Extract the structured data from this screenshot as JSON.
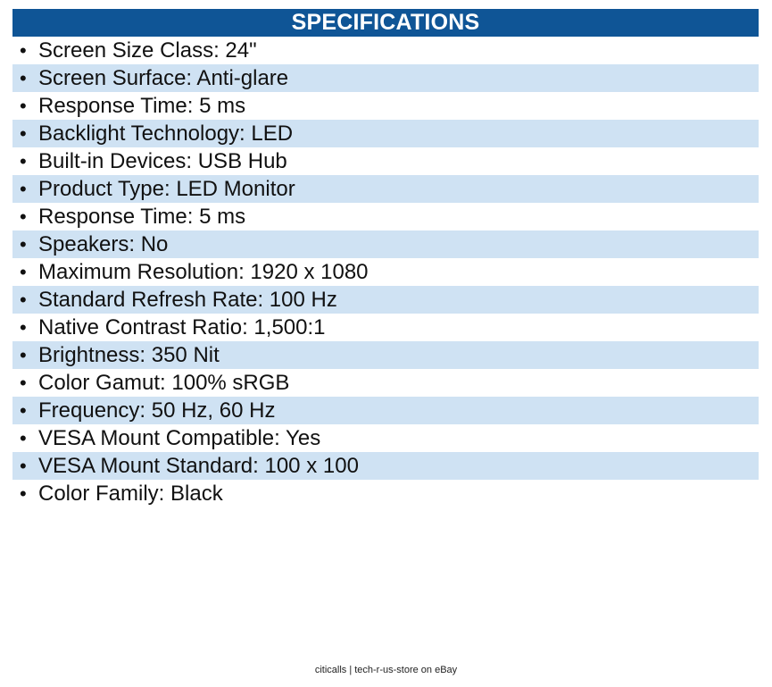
{
  "header": {
    "title": "SPECIFICATIONS"
  },
  "bullet_symbol": "•",
  "colors": {
    "header_background": "#0f5596",
    "header_text": "#ffffff",
    "row_stripe": "#cfe2f3"
  },
  "specs": [
    "Screen Size Class: 24\"",
    "Screen Surface: Anti-glare",
    "Response Time: 5 ms",
    "Backlight Technology: LED",
    "Built-in Devices: USB Hub",
    "Product Type: LED Monitor",
    "Response Time: 5 ms",
    "Speakers: No",
    "Maximum Resolution: 1920 x 1080",
    "Standard Refresh Rate: 100 Hz",
    "Native Contrast Ratio: 1,500:1",
    "Brightness: 350 Nit",
    "Color Gamut: 100% sRGB",
    "Frequency: 50 Hz, 60 Hz",
    "VESA Mount Compatible: Yes",
    "VESA Mount Standard: 100 x 100",
    "Color Family: Black"
  ],
  "footer": {
    "credit": "citicalls | tech-r-us-store on eBay"
  }
}
